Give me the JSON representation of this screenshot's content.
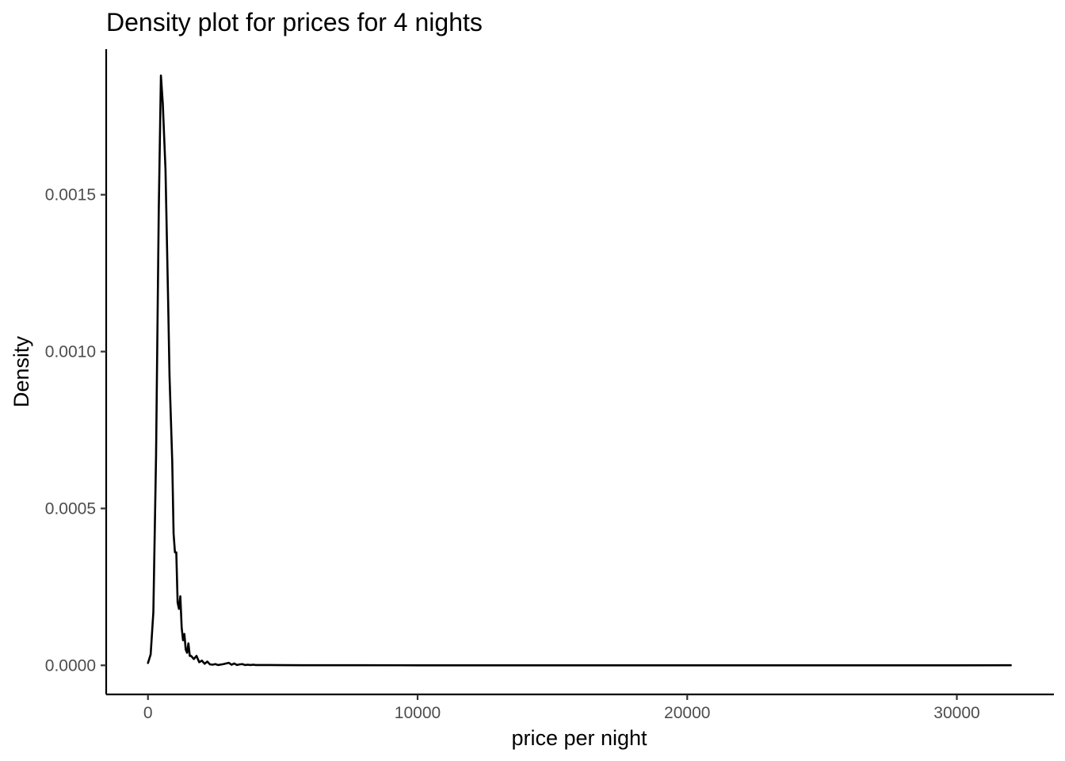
{
  "chart_data": {
    "type": "line",
    "title": "Density plot for prices for 4 nights",
    "xlabel": "price per night",
    "ylabel": "Density",
    "xlim": [
      -1550,
      33600
    ],
    "ylim": [
      -9.27e-05,
      0.001964
    ],
    "x_ticks": [
      0,
      10000,
      20000,
      30000
    ],
    "x_tick_labels": [
      "0",
      "10000",
      "20000",
      "30000"
    ],
    "y_ticks": [
      0.0,
      0.0005,
      0.001,
      0.0015
    ],
    "y_tick_labels": [
      "0.0000",
      "0.0005",
      "0.0010",
      "0.0015"
    ],
    "grid": false,
    "legend": "none",
    "line_color": "#000000",
    "series": [
      {
        "x": [
          0,
          100,
          200,
          300,
          400,
          480,
          550,
          650,
          750,
          800,
          900,
          950,
          1000,
          1050,
          1100,
          1150,
          1200,
          1250,
          1300,
          1350,
          1400,
          1450,
          1500,
          1550,
          1600,
          1700,
          1800,
          1900,
          2000,
          2100,
          2200,
          2300,
          2400,
          2500,
          2600,
          2800,
          3000,
          3100,
          3200,
          3300,
          3400,
          3500,
          3600,
          3700,
          3800,
          3900,
          4000,
          4500,
          5000,
          6000,
          8000,
          10000,
          15000,
          20000,
          25000,
          30000,
          32000
        ],
        "y": [
          7.5e-06,
          3.5e-05,
          0.00017,
          0.00067,
          0.00145,
          0.00188,
          0.00179,
          0.00158,
          0.00115,
          0.00092,
          0.00065,
          0.00042,
          0.00036,
          0.00036,
          0.0002,
          0.00018,
          0.00022,
          0.00012,
          8e-05,
          0.0001,
          5e-05,
          4e-05,
          7e-05,
          3e-05,
          3e-05,
          2e-05,
          3e-05,
          1e-05,
          1.5e-05,
          5e-06,
          1.2e-05,
          3e-06,
          2e-06,
          4e-06,
          1e-06,
          4e-06,
          8e-06,
          2e-06,
          6e-06,
          1e-06,
          3e-06,
          4e-06,
          1e-06,
          2e-06,
          1e-06,
          2e-06,
          1e-06,
          1e-06,
          5e-07,
          3e-07,
          2e-07,
          1e-07,
          1e-07,
          0.0,
          0.0,
          0.0,
          3e-07
        ]
      }
    ]
  }
}
